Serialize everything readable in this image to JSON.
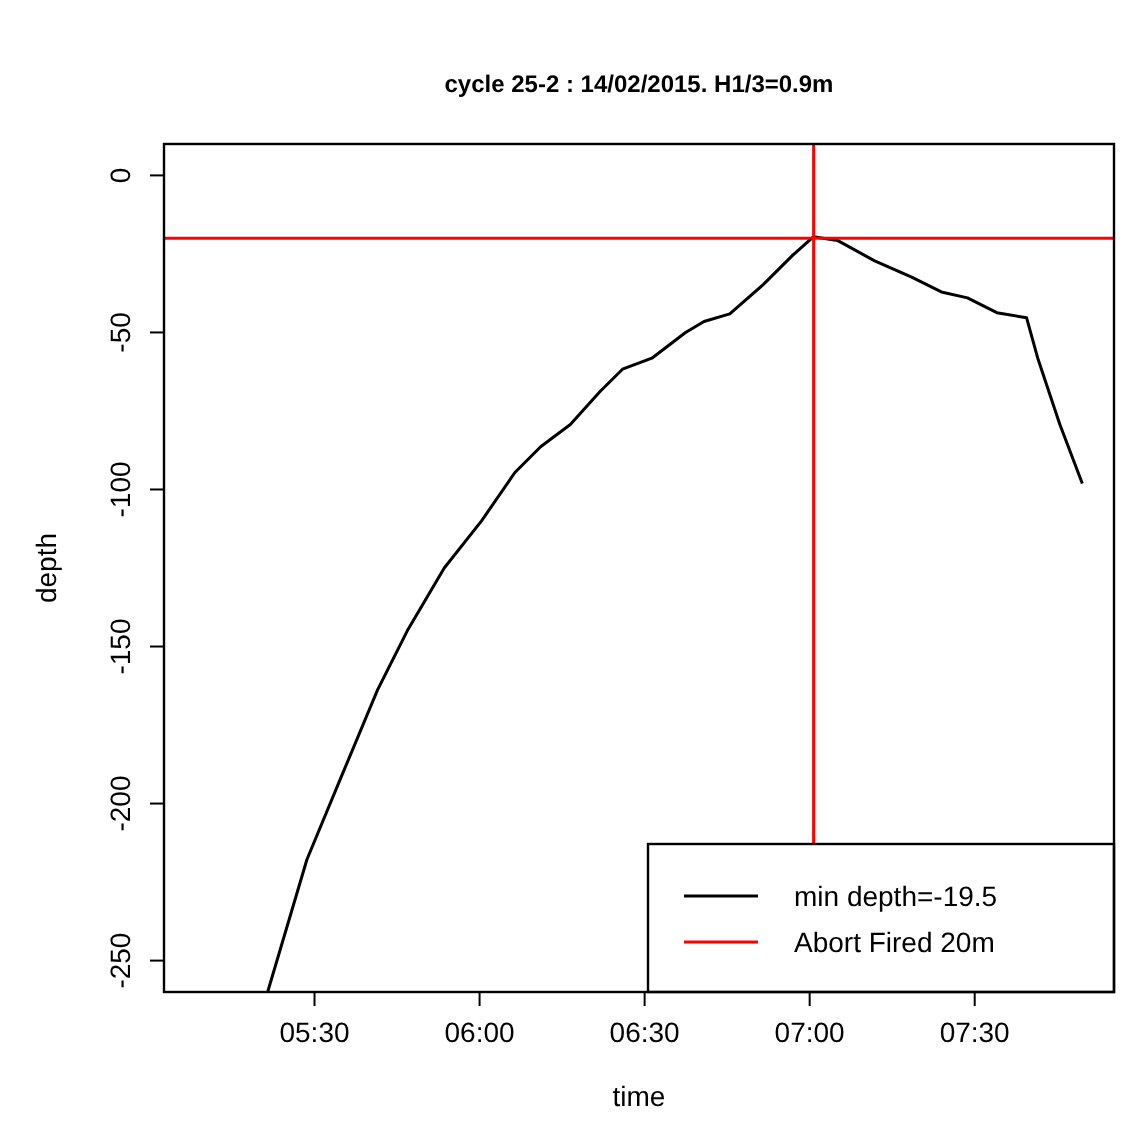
{
  "chart_data": {
    "type": "line",
    "title": "cycle 25-2 : 14/02/2015. H1/3=0.9m",
    "xlabel": "time",
    "ylabel": "depth",
    "xlim": [
      5.044,
      7.922
    ],
    "ylim": [
      -260,
      10
    ],
    "xticks": [
      {
        "value": 5.5,
        "label": "05:30"
      },
      {
        "value": 6,
        "label": "06:00"
      },
      {
        "value": 6.5,
        "label": "06:30"
      },
      {
        "value": 7,
        "label": "07:00"
      },
      {
        "value": 7.5,
        "label": "07:30"
      }
    ],
    "yticks": [
      0,
      -50,
      -100,
      -150,
      -200,
      -250
    ],
    "series": [
      {
        "name": "min depth=-19.5",
        "color": "#000000",
        "x": [
          5.358,
          5.477,
          5.579,
          5.691,
          5.781,
          5.893,
          6.006,
          6.107,
          6.185,
          6.275,
          6.365,
          6.433,
          6.522,
          6.624,
          6.68,
          6.758,
          6.86,
          6.949,
          7.012,
          7.084,
          7.197,
          7.309,
          7.399,
          7.478,
          7.567,
          7.657,
          7.691,
          7.758,
          7.826
        ],
        "values": [
          -260,
          -217.8,
          -192,
          -163.8,
          -145,
          -125,
          -110,
          -94.6,
          -86.4,
          -79.3,
          -68.8,
          -61.7,
          -58.2,
          -50,
          -46.5,
          -44.1,
          -34.7,
          -25.4,
          -19.5,
          -20.7,
          -27.2,
          -32.4,
          -37.1,
          -39,
          -43.7,
          -45.3,
          -58.2,
          -79.3,
          -98.1
        ]
      }
    ],
    "ref_lines": [
      {
        "axis": "y",
        "value": -20,
        "label": "Abort Fired 20m",
        "color": "#ff0000"
      },
      {
        "axis": "x",
        "value": 7.012,
        "color": "#ff0000"
      }
    ],
    "legend": "bottom right",
    "grid": false
  }
}
